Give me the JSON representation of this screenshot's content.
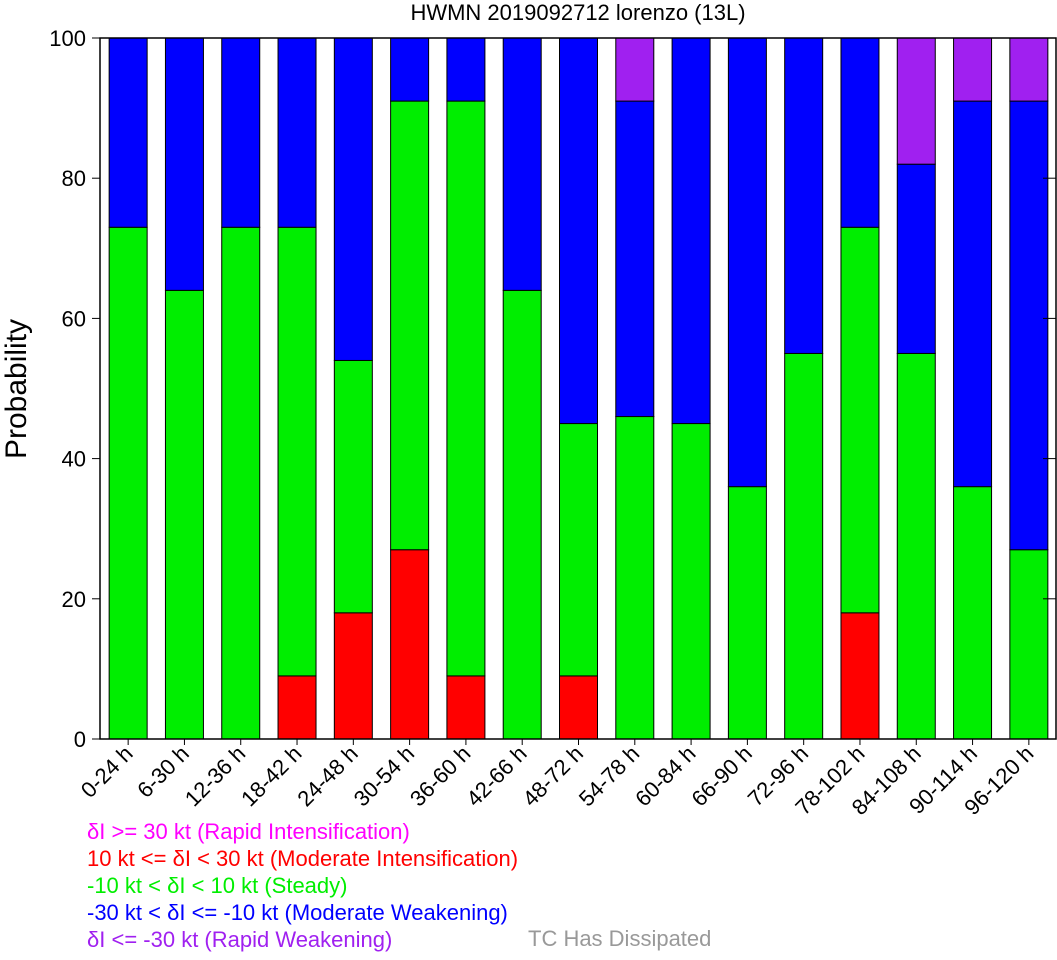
{
  "chart_data": {
    "type": "bar",
    "stacked": true,
    "title": "HWMN 2019092712 lorenzo (13L)",
    "ylabel": "Probability",
    "xlabel": "",
    "ylim": [
      0,
      100
    ],
    "yticks": [
      0,
      20,
      40,
      60,
      80,
      100
    ],
    "grid": false,
    "categories": [
      "0-24 h",
      "6-30 h",
      "12-36 h",
      "18-42 h",
      "24-48 h",
      "30-54 h",
      "36-60 h",
      "42-66 h",
      "48-72 h",
      "54-78 h",
      "60-84 h",
      "66-90 h",
      "72-96 h",
      "78-102 h",
      "84-108 h",
      "90-114 h",
      "96-120 h"
    ],
    "series": [
      {
        "key": "ri",
        "color": "#ff00ff",
        "values": [
          0,
          0,
          0,
          0,
          0,
          0,
          0,
          0,
          0,
          0,
          0,
          0,
          0,
          0,
          0,
          0,
          0
        ]
      },
      {
        "key": "mi",
        "color": "#ff0000",
        "values": [
          0,
          0,
          0,
          9,
          18,
          27,
          9,
          0,
          9,
          0,
          0,
          0,
          0,
          18,
          0,
          0,
          0
        ]
      },
      {
        "key": "steady",
        "color": "#00ee00",
        "values": [
          73,
          64,
          73,
          64,
          36,
          64,
          82,
          64,
          36,
          46,
          45,
          36,
          55,
          55,
          55,
          36,
          27
        ]
      },
      {
        "key": "mw",
        "color": "#0000ff",
        "values": [
          27,
          36,
          27,
          27,
          46,
          9,
          9,
          36,
          55,
          45,
          55,
          64,
          45,
          27,
          27,
          55,
          64
        ]
      },
      {
        "key": "rw",
        "color": "#a020f0",
        "values": [
          0,
          0,
          0,
          0,
          0,
          0,
          0,
          0,
          0,
          9,
          0,
          0,
          0,
          0,
          18,
          9,
          9
        ]
      }
    ]
  },
  "legend": {
    "items": [
      {
        "label": "δI >= 30 kt (Rapid Intensification)",
        "color": "#ff00ff"
      },
      {
        "label": "10 kt <= δI < 30 kt (Moderate Intensification)",
        "color": "#ff0000"
      },
      {
        "label": "-10 kt < δI < 10 kt (Steady)",
        "color": "#00ee00"
      },
      {
        "label": "-30 kt < δI <= -10 kt (Moderate Weakening)",
        "color": "#0000ff"
      },
      {
        "label": "δI <= -30 kt (Rapid Weakening)",
        "color": "#a020f0"
      }
    ],
    "dissipated_label": "TC Has Dissipated",
    "dissipated_color": "#999999"
  }
}
